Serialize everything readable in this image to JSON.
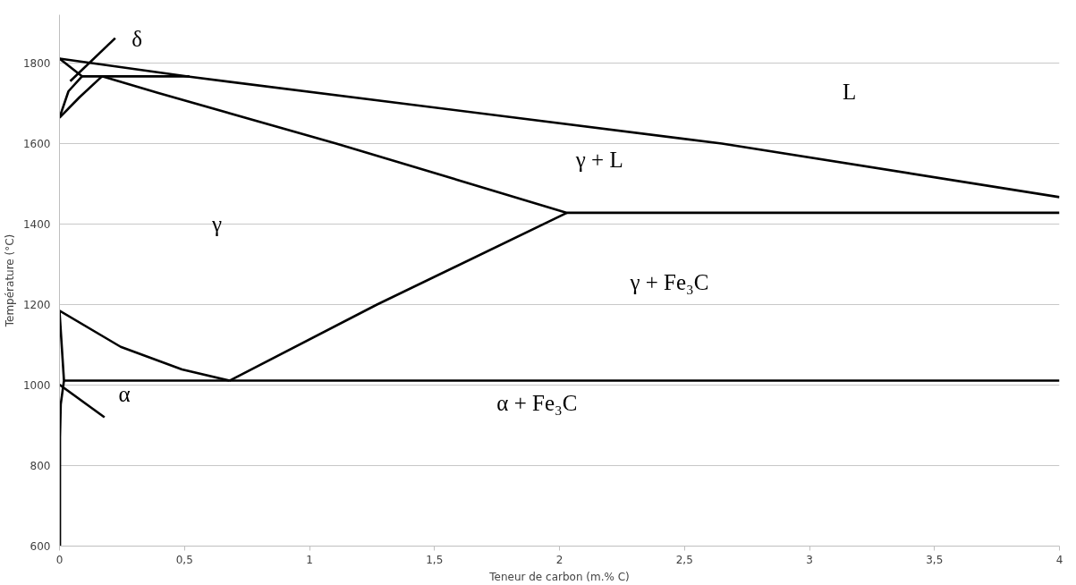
{
  "chart_data": {
    "type": "line",
    "xlabel": "Teneur de carbon (m.% C)",
    "ylabel": "Température (°C)",
    "xlim": [
      0,
      4
    ],
    "ylim": [
      600,
      1920
    ],
    "xticks": [
      0,
      {
        "value": 0.5,
        "label": "0,5"
      },
      1,
      {
        "value": 1.5,
        "label": "1,5"
      },
      2,
      {
        "value": 2.5,
        "label": "2,5"
      },
      3,
      {
        "value": 3.5,
        "label": "3,5"
      },
      4
    ],
    "yticks": [
      600,
      800,
      1000,
      1200,
      1400,
      1600,
      1800
    ],
    "grid": "y",
    "marker": "none",
    "line_style": "solid",
    "series": [
      {
        "color": "#000000",
        "x": [
          0,
          0.52,
          2.65,
          4
        ],
        "values": [
          1811,
          1766,
          1600,
          1467
        ]
      },
      {
        "color": "#000000",
        "x": [
          0,
          0.09,
          0.52
        ],
        "values": [
          1811,
          1767,
          1767
        ]
      },
      {
        "color": "#000000",
        "x": [
          0,
          0.036,
          0.09
        ],
        "values": [
          1664,
          1730,
          1767
        ]
      },
      {
        "color": "#000000",
        "x": [
          0,
          0.08,
          0.17
        ],
        "values": [
          1664,
          1715,
          1767
        ]
      },
      {
        "color": "#000000",
        "x": [
          0.17,
          0.393,
          1.107,
          2.03,
          4
        ],
        "values": [
          1767,
          1726,
          1600,
          1428,
          1428
        ]
      },
      {
        "color": "#000000",
        "x": [
          0.68,
          1.27,
          2.03
        ],
        "values": [
          1011,
          1200,
          1428
        ]
      },
      {
        "color": "#000000",
        "x": [
          0,
          0.245,
          0.49,
          0.68
        ],
        "values": [
          1185,
          1095,
          1039,
          1011
        ]
      },
      {
        "color": "#000000",
        "x": [
          0.018,
          4
        ],
        "values": [
          1011,
          1011
        ]
      },
      {
        "color": "#000000",
        "x": [
          0,
          0.018,
          0.005,
          0.002,
          0.002
        ],
        "values": [
          1185,
          1011,
          952,
          870,
          600
        ]
      },
      {
        "color": "#000000",
        "x": [
          0.043,
          0.223
        ],
        "values": [
          1755,
          1862
        ]
      },
      {
        "color": "#000000",
        "x": [
          0,
          0.18
        ],
        "values": [
          1001,
          920
        ]
      }
    ],
    "annotations": [
      "δ",
      "L",
      "γ + L",
      "γ",
      "γ + Fe₃C",
      "α",
      "α + Fe₃C"
    ]
  }
}
